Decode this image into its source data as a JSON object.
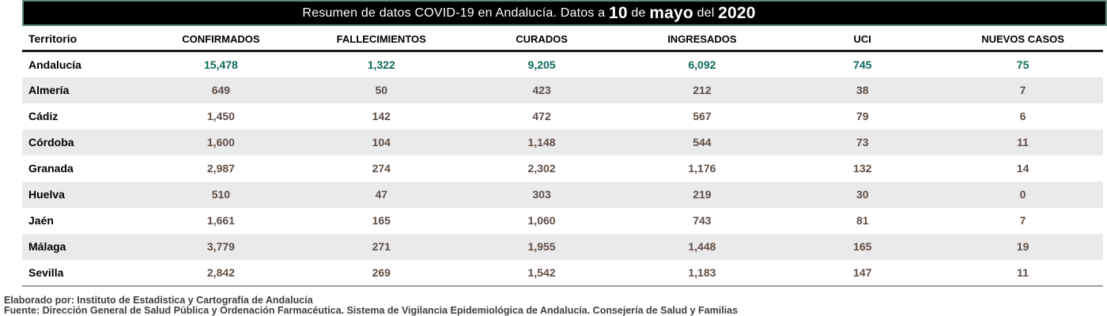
{
  "title": {
    "prefix": "Resumen de datos COVID-19 en Andalucía. Datos a ",
    "day": "10",
    "sep1": " de ",
    "month": "mayo",
    "sep2": " del ",
    "year": "2020"
  },
  "chart_data": {
    "type": "table",
    "columns": [
      "Territorio",
      "CONFIRMADOS",
      "FALLECIMIENTOS",
      "CURADOS",
      "INGRESADOS",
      "UCI",
      "NUEVOS CASOS"
    ],
    "rows": [
      {
        "territory": "Andalucía",
        "values": [
          "15,478",
          "1,322",
          "9,205",
          "6,092",
          "745",
          "75"
        ],
        "highlight": true
      },
      {
        "territory": "Almería",
        "values": [
          "649",
          "50",
          "423",
          "212",
          "38",
          "7"
        ],
        "highlight": false
      },
      {
        "territory": "Cádiz",
        "values": [
          "1,450",
          "142",
          "472",
          "567",
          "79",
          "6"
        ],
        "highlight": false
      },
      {
        "territory": "Córdoba",
        "values": [
          "1,600",
          "104",
          "1,148",
          "544",
          "73",
          "11"
        ],
        "highlight": false
      },
      {
        "territory": "Granada",
        "values": [
          "2,987",
          "274",
          "2,302",
          "1,176",
          "132",
          "14"
        ],
        "highlight": false
      },
      {
        "territory": "Huelva",
        "values": [
          "510",
          "47",
          "303",
          "219",
          "30",
          "0"
        ],
        "highlight": false
      },
      {
        "territory": "Jaén",
        "values": [
          "1,661",
          "165",
          "1,060",
          "743",
          "81",
          "7"
        ],
        "highlight": false
      },
      {
        "territory": "Málaga",
        "values": [
          "3,779",
          "271",
          "1,955",
          "1,448",
          "165",
          "19"
        ],
        "highlight": false
      },
      {
        "territory": "Sevilla",
        "values": [
          "2,842",
          "269",
          "1,542",
          "1,183",
          "147",
          "11"
        ],
        "highlight": false
      }
    ],
    "column_keys": [
      "confirmados",
      "fallecimientos",
      "curados",
      "ingresados",
      "uci",
      "nuevos-casos"
    ]
  },
  "footer": {
    "line1": "Elaborado por: Instituto de Estadística y Cartografía de Andalucía",
    "line2": "Fuente: Dirección General de Salud Pública y Ordenación Farmacéutica. Sistema de Vigilancia Epidemiológica de Andalucía. Consejería de Salud y Familias"
  },
  "colors": {
    "title_bar_bg": "#000000",
    "title_bar_border": "#5f8d80",
    "title_text": "#ffffff",
    "highlight_value": "#0d6a5a",
    "value_text": "#5d4e44",
    "alt_row_bg": "#eaeaea",
    "header_rule": "#1c1c1c",
    "bottom_rule": "#9e9e9e",
    "footer_text": "#3f3f3f"
  }
}
